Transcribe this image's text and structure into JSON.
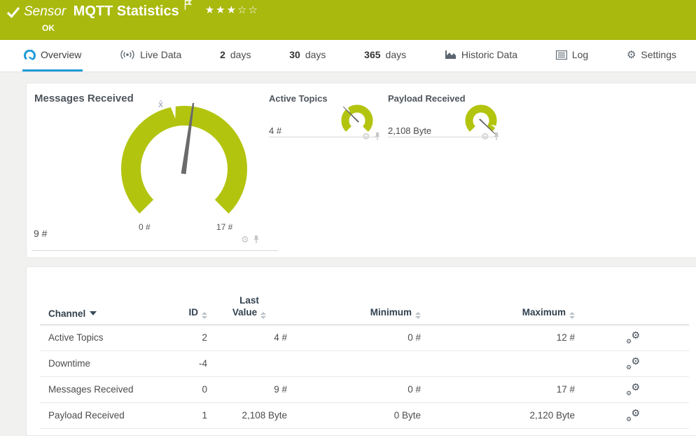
{
  "colors": {
    "brand_green": "#a9b90d",
    "gauge_green": "#b3c30f",
    "accent_blue": "#1e9cd8",
    "needle_gray": "#6b6b6b"
  },
  "header": {
    "type_label": "Sensor",
    "title": "MQTT Statistics",
    "status": "OK",
    "stars_display": "★★★☆☆"
  },
  "tabs": {
    "overview": {
      "label": "Overview"
    },
    "live_data": {
      "label": "Live Data"
    },
    "days2": {
      "num": "2",
      "unit": "days"
    },
    "days30": {
      "num": "30",
      "unit": "days"
    },
    "days365": {
      "num": "365",
      "unit": "days"
    },
    "historic": {
      "label": "Historic Data"
    },
    "log": {
      "label": "Log"
    },
    "settings": {
      "label": "Settings"
    }
  },
  "gauges": {
    "primary": {
      "title": "Messages Received",
      "value": 9,
      "min": 0,
      "max": 17,
      "value_label": "9 #",
      "min_label": "0 #",
      "max_label": "17 #",
      "avg_marker": "x̄"
    },
    "small": [
      {
        "title": "Active Topics",
        "value": 4,
        "min": 0,
        "max": 12,
        "value_label": "4 #"
      },
      {
        "title": "Payload Received",
        "value": 2108,
        "min": 0,
        "max": 2120,
        "value_label": "2,108 Byte"
      }
    ]
  },
  "table": {
    "headers": {
      "channel": "Channel",
      "id": "ID",
      "last_line1": "Last",
      "last_line2": "Value",
      "minimum": "Minimum",
      "maximum": "Maximum"
    },
    "rows": [
      {
        "channel": "Active Topics",
        "id": "2",
        "last": "4 #",
        "min": "0 #",
        "max": "12 #"
      },
      {
        "channel": "Downtime",
        "id": "-4",
        "last": "",
        "min": "",
        "max": ""
      },
      {
        "channel": "Messages Received",
        "id": "0",
        "last": "9 #",
        "min": "0 #",
        "max": "17 #"
      },
      {
        "channel": "Payload Received",
        "id": "1",
        "last": "2,108 Byte",
        "min": "0 Byte",
        "max": "2,120 Byte"
      }
    ]
  }
}
